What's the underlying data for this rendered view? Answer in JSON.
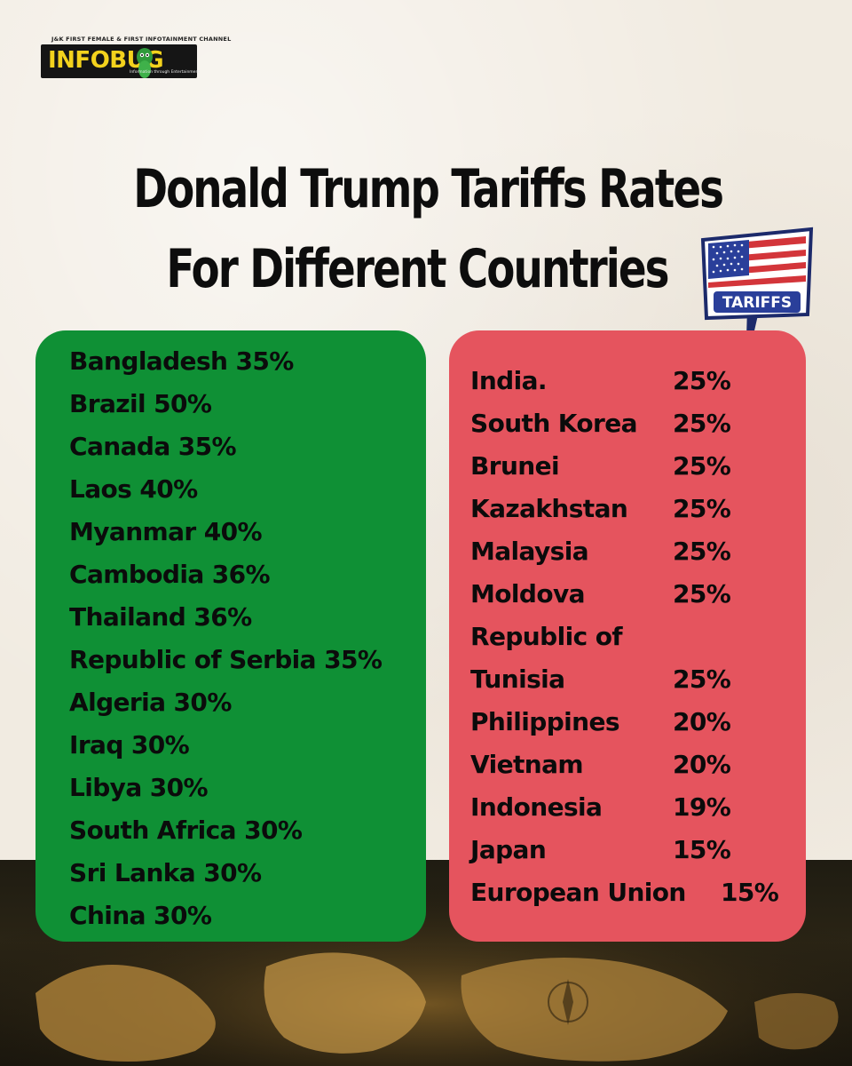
{
  "logo": {
    "tagline": "J&K FIRST FEMALE & FIRST INFOTAINMENT CHANNEL",
    "name": "INFOBUG",
    "sub": "Information through Entertainment"
  },
  "title": {
    "line1": "Donald Trump Tariffs Rates",
    "line2": "For Different Countries"
  },
  "badge": {
    "label": "TARIFFS"
  },
  "colors": {
    "green_card": "#0f9035",
    "red_card": "#e5545e",
    "logo_yellow": "#f3d21d"
  },
  "green_list": [
    "Bangladesh 35%",
    "Brazil 50%",
    "Canada 35%",
    "Laos 40%",
    "Myanmar 40%",
    "Cambodia 36%",
    "Thailand 36%",
    "Republic of Serbia 35%",
    "Algeria 30%",
    "Iraq 30%",
    "Libya 30%",
    "South Africa 30%",
    "Sri Lanka 30%",
    "China 30%"
  ],
  "red_list": [
    {
      "country": "India.",
      "rate": "25%"
    },
    {
      "country": "South Korea",
      "rate": "25%"
    },
    {
      "country": "Brunei",
      "rate": "25%"
    },
    {
      "country": "Kazakhstan",
      "rate": "25%"
    },
    {
      "country": "Malaysia",
      "rate": "25%"
    },
    {
      "country": "Moldova",
      "rate": "25%"
    },
    {
      "country": "Republic of",
      "rate": ""
    },
    {
      "country": "Tunisia",
      "rate": "25%"
    },
    {
      "country": "Philippines",
      "rate": "20%"
    },
    {
      "country": "Vietnam",
      "rate": "20%"
    },
    {
      "country": "Indonesia",
      "rate": "19%"
    },
    {
      "country": "Japan",
      "rate": "15%"
    },
    {
      "country": "European Union",
      "rate": "15%"
    }
  ]
}
